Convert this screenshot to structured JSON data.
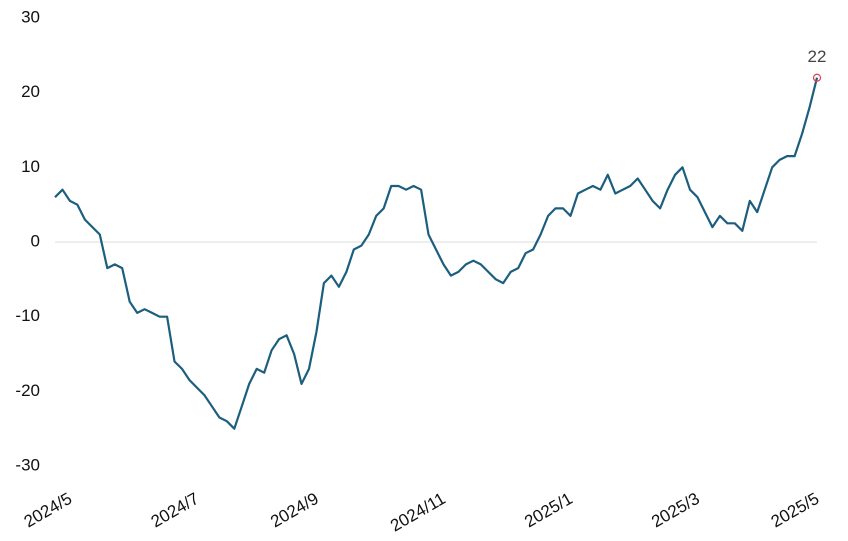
{
  "chart_data": {
    "type": "line",
    "categories": [
      "2024/5",
      null,
      null,
      null,
      null,
      null,
      null,
      null,
      null,
      null,
      null,
      null,
      null,
      null,
      null,
      null,
      null,
      "2024/7",
      null,
      null,
      null,
      null,
      null,
      null,
      null,
      null,
      null,
      null,
      null,
      null,
      null,
      null,
      null,
      "2024/9",
      null,
      null,
      null,
      null,
      null,
      null,
      null,
      null,
      null,
      null,
      null,
      null,
      null,
      null,
      null,
      null,
      "2024/11",
      null,
      null,
      null,
      null,
      null,
      null,
      null,
      null,
      null,
      null,
      null,
      null,
      null,
      null,
      null,
      null,
      "2025/1",
      null,
      null,
      null,
      null,
      null,
      null,
      null,
      null,
      null,
      null,
      null,
      null,
      null,
      null,
      null,
      null,
      "2025/3",
      null,
      null,
      null,
      null,
      null,
      null,
      null,
      null,
      null,
      null,
      null,
      null,
      null,
      null,
      null,
      "2025/5",
      null,
      null
    ],
    "values": [
      6,
      7,
      5.5,
      5,
      3,
      2,
      1,
      -3.5,
      -3,
      -3.5,
      -8,
      -9.5,
      -9,
      -9.5,
      -10,
      -10,
      -16,
      -17,
      -18.5,
      -19.5,
      -20.5,
      -22,
      -23.5,
      -24,
      -25,
      -22,
      -19,
      -17,
      -17.5,
      -14.5,
      -13,
      -12.5,
      -15,
      -19,
      -17,
      -12,
      -5.5,
      -4.5,
      -6,
      -4,
      -1,
      -0.5,
      1,
      3.5,
      4.5,
      7.5,
      7.5,
      7,
      7.5,
      7,
      1,
      -1,
      -3,
      -4.5,
      -4,
      -3,
      -2.5,
      -3,
      -4,
      -5,
      -5.5,
      -4,
      -3.5,
      -1.5,
      -1,
      1,
      3.5,
      4.5,
      4.5,
      3.5,
      6.5,
      7,
      7.5,
      7,
      9,
      6.5,
      7,
      7.5,
      8.5,
      7,
      5.5,
      4.5,
      7,
      9,
      10,
      7,
      6,
      4,
      2,
      3.5,
      2.5,
      2.5,
      1.5,
      5.5,
      4,
      7,
      10,
      11,
      11.5,
      11.5,
      14.5,
      18,
      22
    ],
    "color": "#1b5e7e",
    "marker_color": "#e0404a",
    "ylim": [
      -30,
      30
    ],
    "yticks": [
      -30,
      -20,
      -10,
      0,
      10,
      20,
      30
    ]
  }
}
